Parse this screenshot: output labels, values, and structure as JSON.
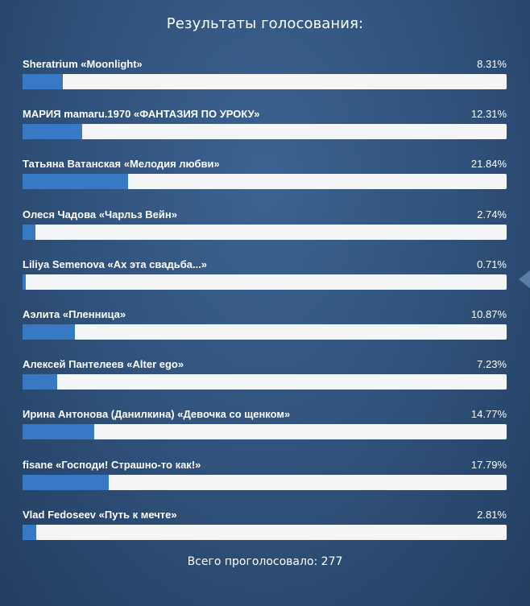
{
  "poll": {
    "title": "Результаты голосования:",
    "total_votes_text": "Всего проголосовало: 277",
    "colors": {
      "bar_fill": "#3779c4",
      "bar_track": "#f4f5f7",
      "background": "#2f5079"
    },
    "items": [
      {
        "label": "Sheratrium «Moonlight»",
        "percent_text": "8.31%",
        "fraction": 0.0831
      },
      {
        "label": "МАРИЯ mamaru.1970 «ФАНТАЗИЯ ПО УРОКУ»",
        "percent_text": "12.31%",
        "fraction": 0.1231
      },
      {
        "label": "Татьяна Ватанская «Мелодия любви»",
        "percent_text": "21.84%",
        "fraction": 0.2184
      },
      {
        "label": "Олеся Чадова «Чарльз Вейн»",
        "percent_text": "2.74%",
        "fraction": 0.0274
      },
      {
        "label": "Liliya Semenova «Ах эта свадьба...»",
        "percent_text": "0.71%",
        "fraction": 0.0071
      },
      {
        "label": "Аэлита «Пленница»",
        "percent_text": "10.87%",
        "fraction": 0.1087
      },
      {
        "label": "Алексей Пантелеев «Alter ego»",
        "percent_text": "7.23%",
        "fraction": 0.0723
      },
      {
        "label": "Ирина Антонова (Данилкина) «Девочка со щенком»",
        "percent_text": "14.77%",
        "fraction": 0.1477
      },
      {
        "label": "fisane «Господи! Страшно-то как!»",
        "percent_text": "17.79%",
        "fraction": 0.1779
      },
      {
        "label": "Vlad Fedoseev «Путь к мечте»",
        "percent_text": "2.81%",
        "fraction": 0.0281
      }
    ]
  }
}
